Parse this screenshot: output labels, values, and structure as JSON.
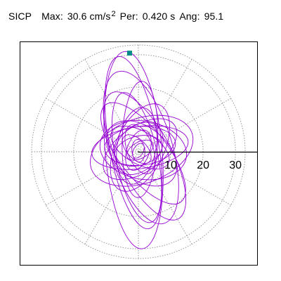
{
  "header": {
    "station": "SICP",
    "max_label": "Max:",
    "max_value": "30.6",
    "max_unit": "cm/s",
    "max_unit_exp": "2",
    "period_label": "Per:",
    "period_value": "0.420 s",
    "angle_label": "Ang:",
    "angle_value": "95.1"
  },
  "chart_data": {
    "type": "line",
    "coordinate_system": "polar",
    "title": "SICP   Max: 30.6 cm/s²   Per: 0.420 s   Ang: 95.1",
    "xlabel": "",
    "ylabel": "",
    "radial_ticks": [
      "10",
      "20",
      "30"
    ],
    "radial_tick_values": [
      10,
      20,
      30
    ],
    "rmax": 33,
    "rlim": [
      0,
      33
    ],
    "grid": true,
    "grid_rings": [
      10,
      20,
      30
    ],
    "grid_spoke_angles_deg": [
      0,
      30,
      60,
      90,
      120,
      150,
      180,
      210,
      240,
      270,
      300,
      330
    ],
    "max_marker": {
      "value": 30.6,
      "angle_deg": 95.1,
      "color": "#008b8b"
    },
    "series": [
      {
        "color": "#9400d3",
        "ellipses": [
          {
            "semi_major": 30.6,
            "semi_minor": 8.8,
            "angle_deg": 95,
            "cx": -1.5,
            "cy": 0.5
          },
          {
            "semi_major": 27.0,
            "semi_minor": 7.6,
            "angle_deg": 100,
            "cx": -1.5,
            "cy": 2.8
          },
          {
            "semi_major": 24.5,
            "semi_minor": 9.6,
            "angle_deg": 107,
            "cx": 0.8,
            "cy": 1.3
          },
          {
            "semi_major": 22.0,
            "semi_minor": 8.3,
            "angle_deg": 118,
            "cx": 2.0,
            "cy": -1.3
          },
          {
            "semi_major": 19.0,
            "semi_minor": 7.5,
            "angle_deg": 128,
            "cx": 1.5,
            "cy": -0.5
          },
          {
            "semi_major": 16.5,
            "semi_minor": 10.0,
            "angle_deg": 20,
            "cx": 1.0,
            "cy": 0.3
          },
          {
            "semi_major": 15.0,
            "semi_minor": 6.5,
            "angle_deg": 8,
            "cx": 0.5,
            "cy": 1.3
          },
          {
            "semi_major": 14.5,
            "semi_minor": 7.5,
            "angle_deg": 65,
            "cx": 0.5,
            "cy": 1.3
          },
          {
            "semi_major": 13.0,
            "semi_minor": 7.0,
            "angle_deg": 35,
            "cx": 0.5,
            "cy": 0.8
          },
          {
            "semi_major": 12.0,
            "semi_minor": 6.0,
            "angle_deg": 80,
            "cx": -0.5,
            "cy": 1.8
          },
          {
            "semi_major": 11.0,
            "semi_minor": 6.0,
            "angle_deg": 5,
            "cx": 0.5,
            "cy": 1.8
          },
          {
            "semi_major": 10.0,
            "semi_minor": 5.0,
            "angle_deg": 150,
            "cx": 0.5,
            "cy": 1.3
          },
          {
            "semi_major": 9.0,
            "semi_minor": 6.5,
            "angle_deg": 50,
            "cx": 0.0,
            "cy": 1.0
          },
          {
            "semi_major": 8.0,
            "semi_minor": 4.0,
            "angle_deg": 110,
            "cx": 0.5,
            "cy": 0.8
          },
          {
            "semi_major": 7.5,
            "semi_minor": 4.5,
            "angle_deg": 15,
            "cx": 0.0,
            "cy": 0.3
          },
          {
            "semi_major": 6.5,
            "semi_minor": 3.5,
            "angle_deg": 70,
            "cx": 0.0,
            "cy": 0.5
          },
          {
            "semi_major": 5.5,
            "semi_minor": 3.0,
            "angle_deg": 135,
            "cx": -0.5,
            "cy": 0.8
          },
          {
            "semi_major": 4.5,
            "semi_minor": 2.5,
            "angle_deg": 30,
            "cx": 0.5,
            "cy": 0.5
          },
          {
            "semi_major": 3.5,
            "semi_minor": 2.0,
            "angle_deg": 95,
            "cx": 0.0,
            "cy": 0.3
          },
          {
            "semi_major": 2.5,
            "semi_minor": 1.5,
            "angle_deg": 60,
            "cx": 0.0,
            "cy": 0.3
          },
          {
            "semi_major": 18.0,
            "semi_minor": 5.5,
            "angle_deg": 88,
            "cx": 0.5,
            "cy": 3.8
          },
          {
            "semi_major": 20.5,
            "semi_minor": 6.5,
            "angle_deg": 102,
            "cx": -0.5,
            "cy": -1.8
          },
          {
            "semi_major": 13.5,
            "semi_minor": 9.0,
            "angle_deg": 170,
            "cx": 1.5,
            "cy": 0.5
          },
          {
            "semi_major": 12.5,
            "semi_minor": 8.0,
            "angle_deg": 140,
            "cx": 1.0,
            "cy": -0.5
          }
        ]
      }
    ]
  }
}
